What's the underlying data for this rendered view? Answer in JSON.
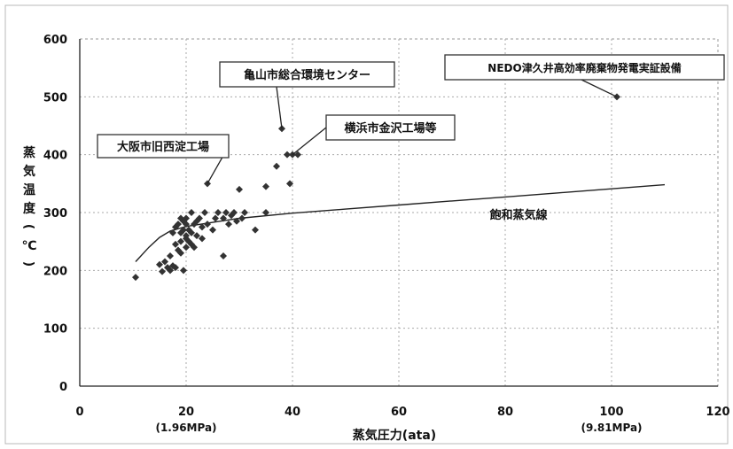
{
  "chart_data": {
    "type": "scatter",
    "xlabel": "蒸気圧力(ata)",
    "ylabel": "蒸気温度(℃)",
    "xlim": [
      0,
      120
    ],
    "ylim": [
      0,
      600
    ],
    "x_ticks": [
      0,
      20,
      40,
      60,
      80,
      100,
      120
    ],
    "y_ticks": [
      0,
      100,
      200,
      300,
      400,
      500,
      600
    ],
    "x_sublabels": [
      {
        "x": 20,
        "text": "(1.96MPa)"
      },
      {
        "x": 100,
        "text": "(9.81MPa)"
      }
    ],
    "grid": true,
    "series": [
      {
        "kind": "points",
        "color": "#333333",
        "points": [
          [
            10.5,
            188
          ],
          [
            15,
            210
          ],
          [
            15.5,
            198
          ],
          [
            16,
            215
          ],
          [
            16.5,
            205
          ],
          [
            17,
            200
          ],
          [
            17,
            225
          ],
          [
            17.5,
            208
          ],
          [
            17.5,
            265
          ],
          [
            18,
            205
          ],
          [
            18,
            245
          ],
          [
            18,
            275
          ],
          [
            18.5,
            235
          ],
          [
            18.5,
            280
          ],
          [
            19,
            250
          ],
          [
            19,
            265
          ],
          [
            19,
            290
          ],
          [
            19,
            230
          ],
          [
            19.5,
            270
          ],
          [
            19.5,
            200
          ],
          [
            19.5,
            285
          ],
          [
            20,
            240
          ],
          [
            20,
            255
          ],
          [
            20,
            260
          ],
          [
            20,
            280
          ],
          [
            20,
            290
          ],
          [
            20.5,
            250
          ],
          [
            20.5,
            270
          ],
          [
            21,
            300
          ],
          [
            21,
            245
          ],
          [
            21,
            265
          ],
          [
            21.5,
            280
          ],
          [
            21.5,
            240
          ],
          [
            22,
            285
          ],
          [
            22,
            260
          ],
          [
            22.5,
            290
          ],
          [
            23,
            255
          ],
          [
            23,
            275
          ],
          [
            23.5,
            300
          ],
          [
            24,
            350
          ],
          [
            24,
            280
          ],
          [
            25,
            270
          ],
          [
            25.5,
            290
          ],
          [
            26,
            300
          ],
          [
            27,
            225
          ],
          [
            27,
            290
          ],
          [
            27.5,
            300
          ],
          [
            28,
            280
          ],
          [
            28.5,
            295
          ],
          [
            29,
            300
          ],
          [
            29.5,
            285
          ],
          [
            30,
            340
          ],
          [
            30.5,
            290
          ],
          [
            31,
            300
          ],
          [
            33,
            270
          ],
          [
            35,
            300
          ],
          [
            35,
            345
          ],
          [
            37,
            380
          ],
          [
            38,
            445
          ],
          [
            39,
            400
          ],
          [
            39.5,
            350
          ],
          [
            40,
            400
          ],
          [
            41,
            400
          ],
          [
            101,
            500
          ]
        ]
      },
      {
        "kind": "line",
        "name": "飽和蒸気線",
        "color": "#222222",
        "points": [
          [
            10.5,
            215
          ],
          [
            13,
            240
          ],
          [
            15,
            257
          ],
          [
            17,
            268
          ],
          [
            20,
            276
          ],
          [
            25,
            283
          ],
          [
            30,
            290
          ],
          [
            40,
            299
          ],
          [
            50,
            306
          ],
          [
            60,
            313
          ],
          [
            70,
            320
          ],
          [
            80,
            327
          ],
          [
            90,
            334
          ],
          [
            100,
            341
          ],
          [
            110,
            348
          ]
        ]
      }
    ],
    "annotations": [
      {
        "text": "大阪市旧西淀工場",
        "point": [
          24,
          350
        ]
      },
      {
        "text": "亀山市総合環境センター",
        "point": [
          38,
          445
        ]
      },
      {
        "text": "横浜市金沢工場等",
        "point": [
          40,
          400
        ]
      },
      {
        "text": "NEDO津久井高効率廃棄物発電実証設備",
        "point": [
          101,
          500
        ]
      }
    ],
    "curve_label": "飽和蒸気線"
  }
}
